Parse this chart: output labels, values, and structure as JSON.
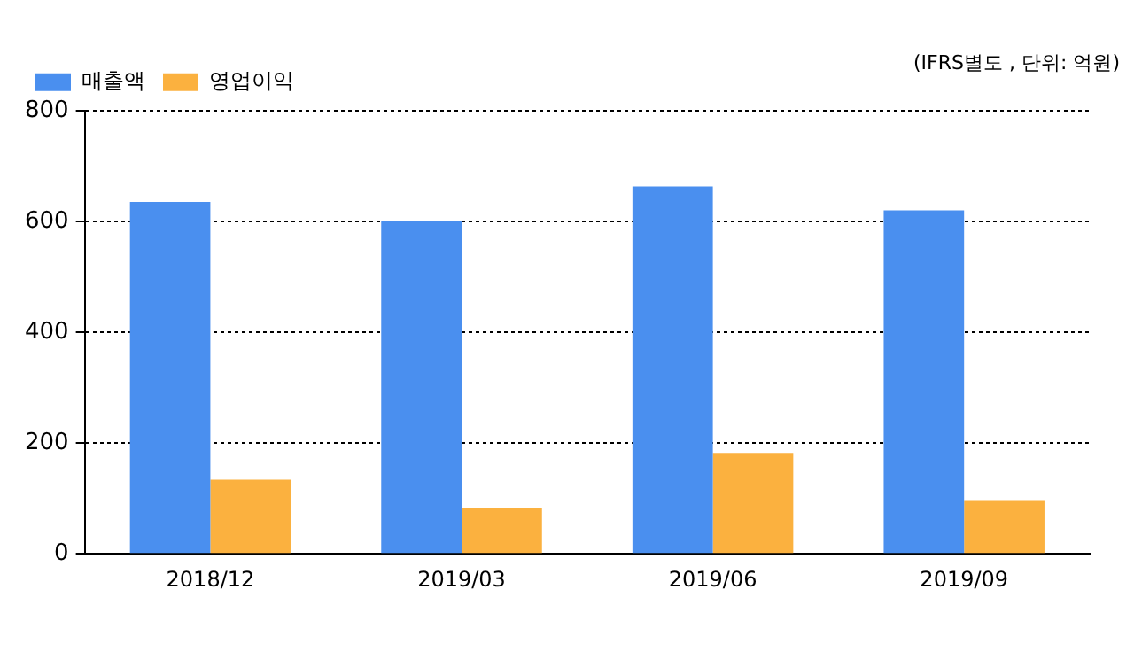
{
  "chart_data": {
    "type": "bar",
    "categories": [
      "2018/12",
      "2019/03",
      "2019/06",
      "2019/09"
    ],
    "series": [
      {
        "name": "매출액",
        "color": "#4a8fef",
        "values": [
          635,
          600,
          663,
          620
        ]
      },
      {
        "name": "영업이익",
        "color": "#fbb13f",
        "values": [
          134,
          82,
          182,
          97
        ]
      }
    ],
    "ylim": [
      0,
      800
    ],
    "yticks": [
      0,
      200,
      400,
      600,
      800
    ],
    "grid": "y",
    "legend": "top left",
    "annotations": [
      "(IFRS별도 , 단위: 억원)"
    ]
  }
}
